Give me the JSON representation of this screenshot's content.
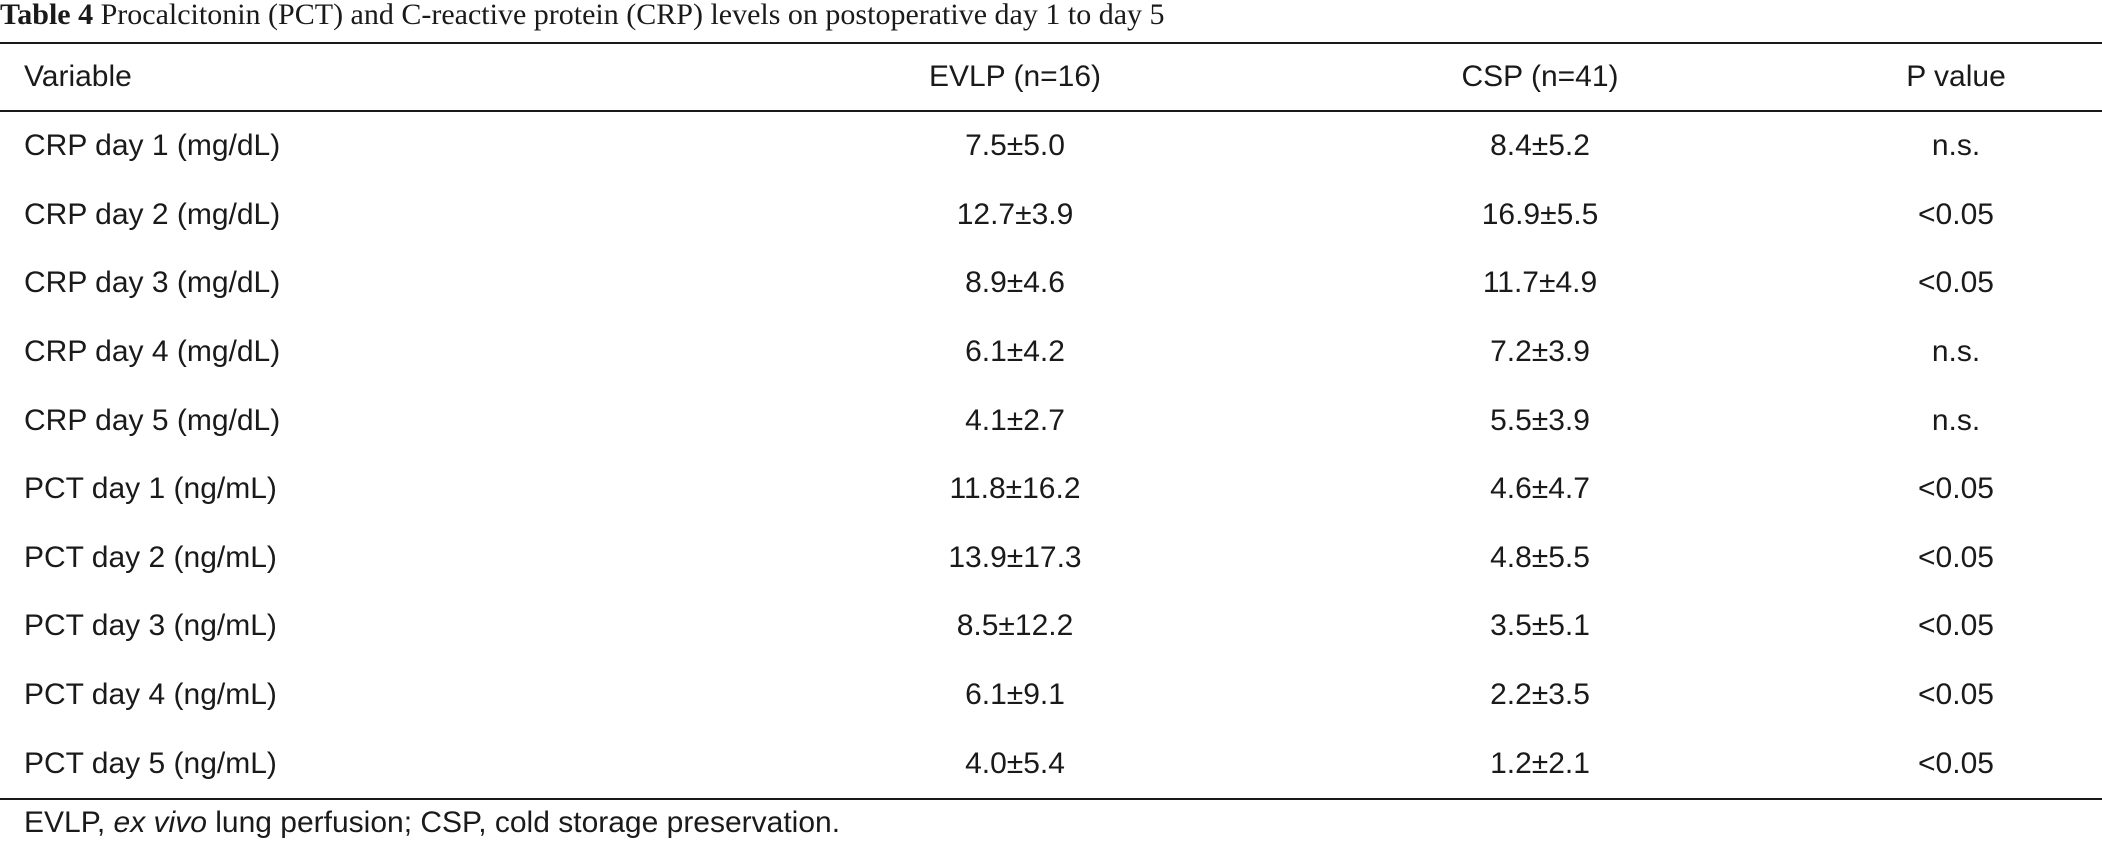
{
  "caption": {
    "label": "Table 4",
    "title": "Procalcitonin (PCT) and C-reactive protein (CRP) levels on postoperative day 1 to day 5"
  },
  "table": {
    "headers": [
      "Variable",
      "EVLP (n=16)",
      "CSP (n=41)",
      "P value"
    ],
    "rows": [
      [
        "CRP day 1 (mg/dL)",
        "7.5±5.0",
        "8.4±5.2",
        "n.s."
      ],
      [
        "CRP day 2 (mg/dL)",
        "12.7±3.9",
        "16.9±5.5",
        "<0.05"
      ],
      [
        "CRP day 3 (mg/dL)",
        "8.9±4.6",
        "11.7±4.9",
        "<0.05"
      ],
      [
        "CRP day 4 (mg/dL)",
        "6.1±4.2",
        "7.2±3.9",
        "n.s."
      ],
      [
        "CRP day 5 (mg/dL)",
        "4.1±2.7",
        "5.5±3.9",
        "n.s."
      ],
      [
        "PCT day 1 (ng/mL)",
        "11.8±16.2",
        "4.6±4.7",
        "<0.05"
      ],
      [
        "PCT day 2 (ng/mL)",
        "13.9±17.3",
        "4.8±5.5",
        "<0.05"
      ],
      [
        "PCT day 3 (ng/mL)",
        "8.5±12.2",
        "3.5±5.1",
        "<0.05"
      ],
      [
        "PCT day 4 (ng/mL)",
        "6.1±9.1",
        "2.2±3.5",
        "<0.05"
      ],
      [
        "PCT day 5 (ng/mL)",
        "4.0±5.4",
        "1.2±2.1",
        "<0.05"
      ]
    ]
  },
  "footnote": {
    "part1": "EVLP, ",
    "italic": "ex vivo",
    "part2": " lung perfusion; CSP, cold storage preservation."
  }
}
